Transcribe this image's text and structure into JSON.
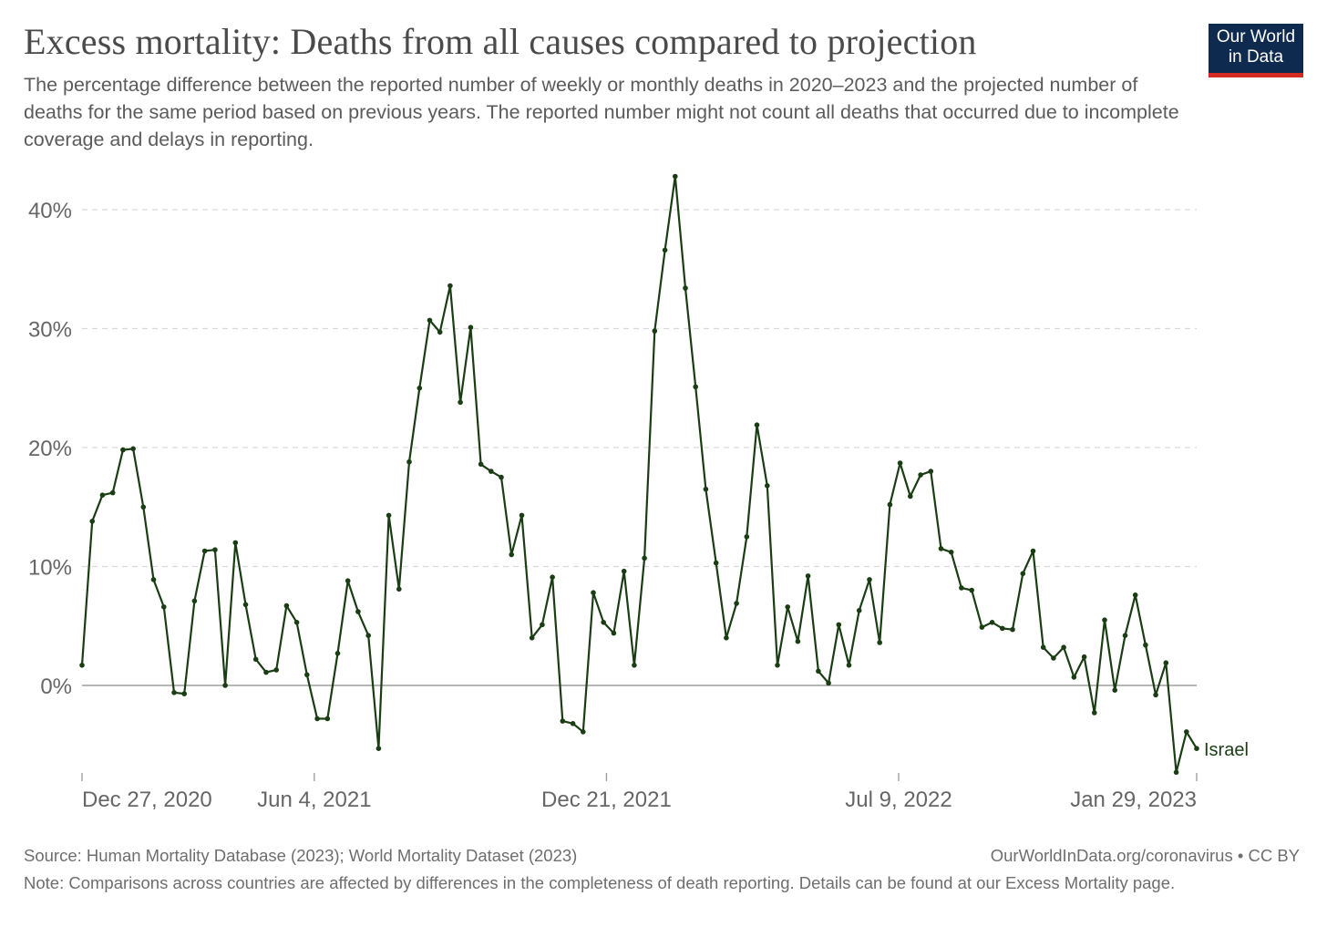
{
  "header": {
    "title": "Excess mortality: Deaths from all causes compared to projection",
    "subtitle": "The percentage difference between the reported number of weekly or monthly deaths in 2020–2023 and the projected number of deaths for the same period based on previous years. The reported number might not count all deaths that occurred due to incomplete coverage and delays in reporting.",
    "logo_line1": "Our World",
    "logo_line2": "in Data"
  },
  "footer": {
    "source": "Source: Human Mortality Database (2023); World Mortality Dataset (2023)",
    "credit": "OurWorldInData.org/coronavirus • CC BY",
    "note": "Note: Comparisons across countries are affected by differences in the completeness of death reporting. Details can be found at our Excess Mortality page."
  },
  "colors": {
    "line": "#1a3d14",
    "grid": "#d9d9d9",
    "zero_line": "#8a8a8a",
    "logo_bg": "#0f2a4f",
    "logo_accent": "#d42b21"
  },
  "chart_data": {
    "type": "line",
    "title": "Excess mortality: Deaths from all causes compared to projection",
    "xlabel": "",
    "ylabel": "",
    "ylim": [
      -7.5,
      43
    ],
    "y_ticks": [
      0,
      10,
      20,
      30,
      40
    ],
    "y_tick_labels": [
      "0%",
      "10%",
      "20%",
      "30%",
      "40%"
    ],
    "x_ticks": [
      "2020-12-27",
      "2021-06-04",
      "2021-12-21",
      "2022-07-09",
      "2023-01-29"
    ],
    "x_tick_labels": [
      "Dec 27, 2020",
      "Jun 4, 2021",
      "Dec 21, 2021",
      "Jul 9, 2022",
      "Jan 29, 2023"
    ],
    "grid": true,
    "series": [
      {
        "name": "Israel",
        "frequency": "weekly",
        "start_date": "2020-12-27",
        "values": [
          1.7,
          13.8,
          16.0,
          16.2,
          19.8,
          19.9,
          15.0,
          8.9,
          6.6,
          -0.6,
          -0.7,
          7.1,
          11.3,
          11.4,
          0.0,
          12.0,
          6.8,
          2.2,
          1.1,
          1.3,
          6.7,
          5.3,
          0.9,
          -2.8,
          -2.8,
          2.7,
          8.8,
          6.2,
          4.2,
          -5.3,
          14.3,
          8.1,
          18.8,
          25.0,
          30.7,
          29.7,
          33.6,
          23.8,
          30.1,
          18.6,
          18.0,
          17.5,
          11.0,
          14.3,
          4.0,
          5.1,
          9.1,
          -3.0,
          -3.2,
          -3.9,
          7.8,
          5.3,
          4.4,
          9.6,
          1.7,
          10.7,
          29.8,
          36.6,
          42.8,
          33.4,
          25.1,
          16.5,
          10.3,
          4.0,
          6.9,
          12.5,
          21.9,
          16.8,
          1.7,
          6.6,
          3.7,
          9.2,
          1.2,
          0.2,
          5.1,
          1.7,
          6.3,
          8.9,
          3.6,
          15.2,
          18.7,
          15.9,
          17.7,
          18.0,
          11.5,
          11.2,
          8.2,
          8.0,
          4.9,
          5.3,
          4.8,
          4.7,
          9.4,
          11.3,
          3.2,
          2.3,
          3.2,
          0.7,
          2.4,
          -2.3,
          5.5,
          -0.4,
          4.2,
          7.6,
          3.4,
          -0.8,
          1.9,
          -7.3,
          -3.9,
          -5.3
        ]
      }
    ],
    "end_label": "Israel"
  }
}
